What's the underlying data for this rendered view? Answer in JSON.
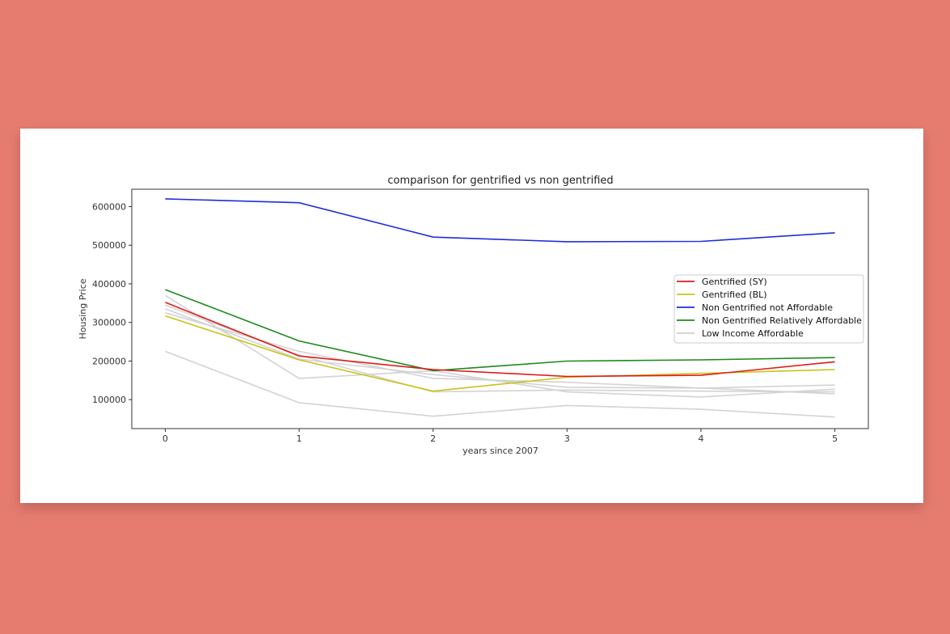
{
  "chart_data": {
    "type": "line",
    "title": "comparison for gentrified vs non gentrified",
    "xlabel": "years since 2007",
    "ylabel": "Housing Price",
    "x": [
      0,
      1,
      2,
      3,
      4,
      5
    ],
    "xlim": [
      -0.25,
      5.25
    ],
    "ylim": [
      25000,
      645000
    ],
    "yticks": [
      100000,
      200000,
      300000,
      400000,
      500000,
      600000
    ],
    "grid": false,
    "legend_position": "center-right",
    "legend": [
      {
        "label": "Gentrified (SY)",
        "color": "#e01b1b"
      },
      {
        "label": "Gentrified (BL)",
        "color": "#c8c41a"
      },
      {
        "label": "Non Gentrified not Affordable",
        "color": "#1f2ed6"
      },
      {
        "label": "Non Gentrified Relatively Affordable",
        "color": "#1e8a1e"
      },
      {
        "label": "Low Income Affordable",
        "color": "#d0d0d0"
      }
    ],
    "series": [
      {
        "color": "#d3d3d3",
        "values": [
          225000,
          92000,
          57000,
          85000,
          75000,
          55000
        ]
      },
      {
        "color": "#d3d3d3",
        "values": [
          370000,
          155000,
          175000,
          120000,
          107000,
          127000
        ]
      },
      {
        "color": "#d3d3d3",
        "values": [
          325000,
          225000,
          155000,
          145000,
          130000,
          115000
        ]
      },
      {
        "color": "#d3d3d3",
        "values": [
          335000,
          205000,
          165000,
          132000,
          130000,
          138000
        ]
      },
      {
        "color": "#d3d3d3",
        "values": [
          345000,
          215000,
          120000,
          125000,
          122000,
          120000
        ]
      },
      {
        "color": "#1f2ed6",
        "values": [
          620000,
          610000,
          521000,
          509000,
          510000,
          532000
        ]
      },
      {
        "color": "#1e8a1e",
        "values": [
          385000,
          252000,
          175000,
          200000,
          203000,
          209000
        ]
      },
      {
        "color": "#c8c41a",
        "values": [
          317000,
          203000,
          122000,
          158000,
          168000,
          178000
        ]
      },
      {
        "color": "#e01b1b",
        "values": [
          352000,
          213000,
          178000,
          160000,
          163000,
          198000
        ]
      }
    ]
  }
}
